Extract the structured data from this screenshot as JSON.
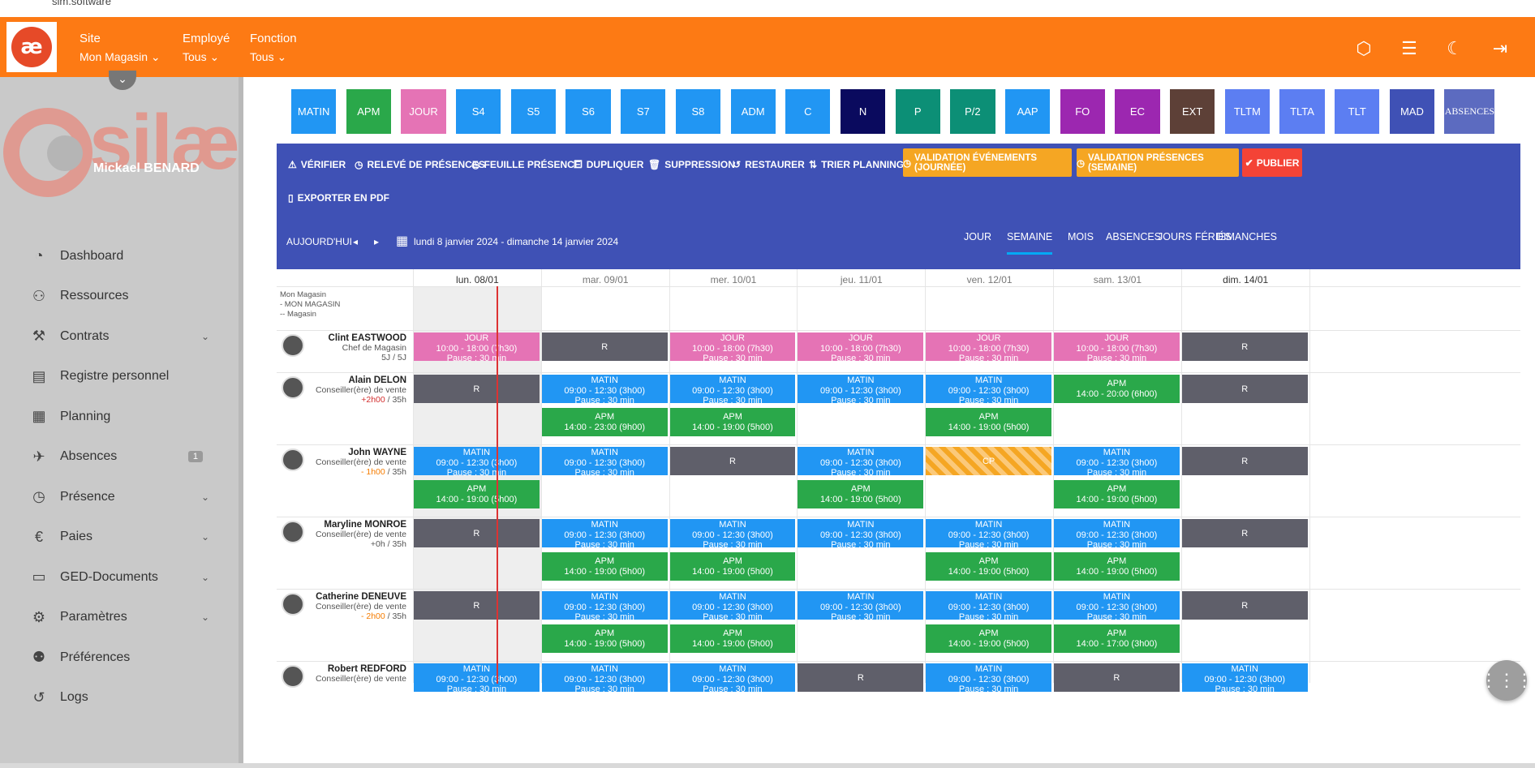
{
  "window": {
    "site_url": "sim.software"
  },
  "header": {
    "logo_text": "æ",
    "filters": [
      {
        "label": "Site",
        "value": "Mon Magasin ⌄"
      },
      {
        "label": "Employé",
        "value": "Tous ⌄"
      },
      {
        "label": "Fonction",
        "value": "Tous ⌄"
      }
    ],
    "icons": [
      "cube-icon",
      "indent-icon",
      "moon-icon",
      "logout-icon"
    ]
  },
  "sidebar": {
    "brand": "silæ",
    "user_name": "Mickael BENARD",
    "collapse_glyph": "⌄",
    "items": [
      {
        "label": "Dashboard",
        "icon": "gauge-icon",
        "glyph": "◔",
        "chevron": false
      },
      {
        "label": "Ressources",
        "icon": "users-icon",
        "glyph": "⚇",
        "chevron": false
      },
      {
        "label": "Contrats",
        "icon": "gavel-icon",
        "glyph": "⚒",
        "chevron": true
      },
      {
        "label": "Registre personnel",
        "icon": "register-icon",
        "glyph": "▤",
        "chevron": false
      },
      {
        "label": "Planning",
        "icon": "calendar-icon",
        "glyph": "▦",
        "chevron": false
      },
      {
        "label": "Absences",
        "icon": "plane-icon",
        "glyph": "✈",
        "chevron": false,
        "badge": "1"
      },
      {
        "label": "Présence",
        "icon": "clock-icon",
        "glyph": "◷",
        "chevron": true
      },
      {
        "label": "Paies",
        "icon": "euro-icon",
        "glyph": "€",
        "chevron": true
      },
      {
        "label": "GED-Documents",
        "icon": "folder-icon",
        "glyph": "▭",
        "chevron": true
      },
      {
        "label": "Paramètres",
        "icon": "gear-icon",
        "glyph": "⚙",
        "chevron": true
      },
      {
        "label": "Préférences",
        "icon": "user-cog-icon",
        "glyph": "⚉",
        "chevron": false
      },
      {
        "label": "Logs",
        "icon": "history-icon",
        "glyph": "↺",
        "chevron": false
      }
    ]
  },
  "codes": [
    {
      "label": "MATIN",
      "color": "#2196f3"
    },
    {
      "label": "APM",
      "color": "#2aa84a"
    },
    {
      "label": "JOUR",
      "color": "#e573b5"
    },
    {
      "label": "S4",
      "color": "#2196f3"
    },
    {
      "label": "S5",
      "color": "#2196f3"
    },
    {
      "label": "S6",
      "color": "#2196f3"
    },
    {
      "label": "S7",
      "color": "#2196f3"
    },
    {
      "label": "S8",
      "color": "#2196f3"
    },
    {
      "label": "ADM",
      "color": "#2196f3"
    },
    {
      "label": "C",
      "color": "#2196f3"
    },
    {
      "label": "N",
      "color": "#0a0a5e"
    },
    {
      "label": "P",
      "color": "#0c8f76"
    },
    {
      "label": "P/2",
      "color": "#0c8f76"
    },
    {
      "label": "AAP",
      "color": "#2196f3"
    },
    {
      "label": "FO",
      "color": "#9c27b0"
    },
    {
      "label": "EC",
      "color": "#9c27b0"
    },
    {
      "label": "EXT",
      "color": "#5d4037"
    },
    {
      "label": "TLTM",
      "color": "#5c7ef2"
    },
    {
      "label": "TLTA",
      "color": "#5c7ef2"
    },
    {
      "label": "TLT",
      "color": "#5c7ef2"
    },
    {
      "label": "MAD",
      "color": "#3f51b5"
    },
    {
      "label": "ABSENCES",
      "color": "#5c6bc0"
    }
  ],
  "toolbar": {
    "verify": "VÉRIFIER",
    "releve": "RELEVÉ DE PRÉSENCES",
    "feuille": "FEUILLE PRÉSENCE",
    "dupliquer": "DUPLIQUER",
    "suppression": "SUPPRESSION",
    "restaurer": "RESTAURER",
    "trier": "TRIER PLANNING",
    "valid_evt": "VALIDATION ÉVÉNEMENTS (JOURNÉE)",
    "valid_pres": "VALIDATION PRÉSENCES (SEMAINE)",
    "publier": "PUBLIER",
    "export_pdf": "EXPORTER EN PDF"
  },
  "nav": {
    "today": "AUJOURD'HUI",
    "prev": "◂",
    "next": "▸",
    "range": "lundi 8 janvier 2024 - dimanche 14 janvier 2024",
    "views": [
      "JOUR",
      "SEMAINE",
      "MOIS",
      "ABSENCES",
      "JOURS FÉRIÉS",
      "DIMANCHES"
    ],
    "active_view": "SEMAINE"
  },
  "days": [
    "lun. 08/01",
    "mar. 09/01",
    "mer. 10/01",
    "jeu. 11/01",
    "ven. 12/01",
    "sam. 13/01",
    "dim. 14/01"
  ],
  "site_label": [
    "Mon Magasin",
    "- MON MAGASIN",
    "-- Magasin"
  ],
  "employees": [
    {
      "name": "Clint EASTWOOD",
      "role": "Chef de Magasin",
      "hours": "5J / 5J",
      "hours_delta": ""
    },
    {
      "name": "Alain DELON",
      "role": "Conseiller(ère) de vente",
      "hours": " / 35h",
      "hours_delta": "+2h00"
    },
    {
      "name": "John WAYNE",
      "role": "Conseiller(ère) de vente",
      "hours": " / 35h",
      "hours_delta": "- 1h00"
    },
    {
      "name": "Maryline MONROE",
      "role": "Conseiller(ère) de vente",
      "hours": "+0h / 35h",
      "hours_delta": ""
    },
    {
      "name": "Catherine DENEUVE",
      "role": "Conseiller(ère) de vente",
      "hours": " / 35h",
      "hours_delta": "- 2h00"
    },
    {
      "name": "Robert REDFORD",
      "role": "Conseiller(ère) de vente",
      "hours": "",
      "hours_delta": ""
    }
  ],
  "shift_colors": {
    "JOUR": "#e573b5",
    "MATIN": "#2196f3",
    "APM": "#2aa84a",
    "R": "#5f5f6a",
    "CP": "#f5a623"
  },
  "shifts": [
    {
      "emp": 0,
      "day": 0,
      "slot": 0,
      "code": "JOUR",
      "l1": "JOUR",
      "l2": "10:00 - 18:00 (7h30)",
      "l3": "Pause : 30 min"
    },
    {
      "emp": 0,
      "day": 1,
      "slot": 0,
      "code": "R",
      "l1": "R"
    },
    {
      "emp": 0,
      "day": 2,
      "slot": 0,
      "code": "JOUR",
      "l1": "JOUR",
      "l2": "10:00 - 18:00 (7h30)",
      "l3": "Pause : 30 min"
    },
    {
      "emp": 0,
      "day": 3,
      "slot": 0,
      "code": "JOUR",
      "l1": "JOUR",
      "l2": "10:00 - 18:00 (7h30)",
      "l3": "Pause : 30 min"
    },
    {
      "emp": 0,
      "day": 4,
      "slot": 0,
      "code": "JOUR",
      "l1": "JOUR",
      "l2": "10:00 - 18:00 (7h30)",
      "l3": "Pause : 30 min"
    },
    {
      "emp": 0,
      "day": 5,
      "slot": 0,
      "code": "JOUR",
      "l1": "JOUR",
      "l2": "10:00 - 18:00 (7h30)",
      "l3": "Pause : 30 min"
    },
    {
      "emp": 0,
      "day": 6,
      "slot": 0,
      "code": "R",
      "l1": "R"
    },
    {
      "emp": 1,
      "day": 0,
      "slot": 0,
      "code": "R",
      "l1": "R"
    },
    {
      "emp": 1,
      "day": 1,
      "slot": 0,
      "code": "MATIN",
      "l1": "MATIN",
      "l2": "09:00 - 12:30 (3h00)",
      "l3": "Pause : 30 min"
    },
    {
      "emp": 1,
      "day": 2,
      "slot": 0,
      "code": "MATIN",
      "l1": "MATIN",
      "l2": "09:00 - 12:30 (3h00)",
      "l3": "Pause : 30 min"
    },
    {
      "emp": 1,
      "day": 3,
      "slot": 0,
      "code": "MATIN",
      "l1": "MATIN",
      "l2": "09:00 - 12:30 (3h00)",
      "l3": "Pause : 30 min"
    },
    {
      "emp": 1,
      "day": 4,
      "slot": 0,
      "code": "MATIN",
      "l1": "MATIN",
      "l2": "09:00 - 12:30 (3h00)",
      "l3": "Pause : 30 min"
    },
    {
      "emp": 1,
      "day": 5,
      "slot": 0,
      "code": "APM",
      "l1": "APM",
      "l2": "14:00 - 20:00 (6h00)"
    },
    {
      "emp": 1,
      "day": 6,
      "slot": 0,
      "code": "R",
      "l1": "R"
    },
    {
      "emp": 1,
      "day": 1,
      "slot": 1,
      "code": "APM",
      "l1": "APM",
      "l2": "14:00 - 23:00 (9h00)"
    },
    {
      "emp": 1,
      "day": 2,
      "slot": 1,
      "code": "APM",
      "l1": "APM",
      "l2": "14:00 - 19:00 (5h00)"
    },
    {
      "emp": 1,
      "day": 4,
      "slot": 1,
      "code": "APM",
      "l1": "APM",
      "l2": "14:00 - 19:00 (5h00)"
    },
    {
      "emp": 2,
      "day": 0,
      "slot": 0,
      "code": "MATIN",
      "l1": "MATIN",
      "l2": "09:00 - 12:30 (3h00)",
      "l3": "Pause : 30 min"
    },
    {
      "emp": 2,
      "day": 1,
      "slot": 0,
      "code": "MATIN",
      "l1": "MATIN",
      "l2": "09:00 - 12:30 (3h00)",
      "l3": "Pause : 30 min"
    },
    {
      "emp": 2,
      "day": 2,
      "slot": 0,
      "code": "R",
      "l1": "R"
    },
    {
      "emp": 2,
      "day": 3,
      "slot": 0,
      "code": "MATIN",
      "l1": "MATIN",
      "l2": "09:00 - 12:30 (3h00)",
      "l3": "Pause : 30 min"
    },
    {
      "emp": 2,
      "day": 4,
      "slot": 0,
      "code": "CP",
      "l1": "CP"
    },
    {
      "emp": 2,
      "day": 5,
      "slot": 0,
      "code": "MATIN",
      "l1": "MATIN",
      "l2": "09:00 - 12:30 (3h00)",
      "l3": "Pause : 30 min"
    },
    {
      "emp": 2,
      "day": 6,
      "slot": 0,
      "code": "R",
      "l1": "R"
    },
    {
      "emp": 2,
      "day": 0,
      "slot": 1,
      "code": "APM",
      "l1": "APM",
      "l2": "14:00 - 19:00 (5h00)"
    },
    {
      "emp": 2,
      "day": 3,
      "slot": 1,
      "code": "APM",
      "l1": "APM",
      "l2": "14:00 - 19:00 (5h00)"
    },
    {
      "emp": 2,
      "day": 5,
      "slot": 1,
      "code": "APM",
      "l1": "APM",
      "l2": "14:00 - 19:00 (5h00)"
    },
    {
      "emp": 3,
      "day": 0,
      "slot": 0,
      "code": "R",
      "l1": "R"
    },
    {
      "emp": 3,
      "day": 1,
      "slot": 0,
      "code": "MATIN",
      "l1": "MATIN",
      "l2": "09:00 - 12:30 (3h00)",
      "l3": "Pause : 30 min"
    },
    {
      "emp": 3,
      "day": 2,
      "slot": 0,
      "code": "MATIN",
      "l1": "MATIN",
      "l2": "09:00 - 12:30 (3h00)",
      "l3": "Pause : 30 min"
    },
    {
      "emp": 3,
      "day": 3,
      "slot": 0,
      "code": "MATIN",
      "l1": "MATIN",
      "l2": "09:00 - 12:30 (3h00)",
      "l3": "Pause : 30 min"
    },
    {
      "emp": 3,
      "day": 4,
      "slot": 0,
      "code": "MATIN",
      "l1": "MATIN",
      "l2": "09:00 - 12:30 (3h00)",
      "l3": "Pause : 30 min"
    },
    {
      "emp": 3,
      "day": 5,
      "slot": 0,
      "code": "MATIN",
      "l1": "MATIN",
      "l2": "09:00 - 12:30 (3h00)",
      "l3": "Pause : 30 min"
    },
    {
      "emp": 3,
      "day": 6,
      "slot": 0,
      "code": "R",
      "l1": "R"
    },
    {
      "emp": 3,
      "day": 1,
      "slot": 1,
      "code": "APM",
      "l1": "APM",
      "l2": "14:00 - 19:00 (5h00)"
    },
    {
      "emp": 3,
      "day": 2,
      "slot": 1,
      "code": "APM",
      "l1": "APM",
      "l2": "14:00 - 19:00 (5h00)"
    },
    {
      "emp": 3,
      "day": 4,
      "slot": 1,
      "code": "APM",
      "l1": "APM",
      "l2": "14:00 - 19:00 (5h00)"
    },
    {
      "emp": 3,
      "day": 5,
      "slot": 1,
      "code": "APM",
      "l1": "APM",
      "l2": "14:00 - 19:00 (5h00)"
    },
    {
      "emp": 4,
      "day": 0,
      "slot": 0,
      "code": "R",
      "l1": "R"
    },
    {
      "emp": 4,
      "day": 1,
      "slot": 0,
      "code": "MATIN",
      "l1": "MATIN",
      "l2": "09:00 - 12:30 (3h00)",
      "l3": "Pause : 30 min"
    },
    {
      "emp": 4,
      "day": 2,
      "slot": 0,
      "code": "MATIN",
      "l1": "MATIN",
      "l2": "09:00 - 12:30 (3h00)",
      "l3": "Pause : 30 min"
    },
    {
      "emp": 4,
      "day": 3,
      "slot": 0,
      "code": "MATIN",
      "l1": "MATIN",
      "l2": "09:00 - 12:30 (3h00)",
      "l3": "Pause : 30 min"
    },
    {
      "emp": 4,
      "day": 4,
      "slot": 0,
      "code": "MATIN",
      "l1": "MATIN",
      "l2": "09:00 - 12:30 (3h00)",
      "l3": "Pause : 30 min"
    },
    {
      "emp": 4,
      "day": 5,
      "slot": 0,
      "code": "MATIN",
      "l1": "MATIN",
      "l2": "09:00 - 12:30 (3h00)",
      "l3": "Pause : 30 min"
    },
    {
      "emp": 4,
      "day": 6,
      "slot": 0,
      "code": "R",
      "l1": "R"
    },
    {
      "emp": 4,
      "day": 1,
      "slot": 1,
      "code": "APM",
      "l1": "APM",
      "l2": "14:00 - 19:00 (5h00)"
    },
    {
      "emp": 4,
      "day": 2,
      "slot": 1,
      "code": "APM",
      "l1": "APM",
      "l2": "14:00 - 19:00 (5h00)"
    },
    {
      "emp": 4,
      "day": 4,
      "slot": 1,
      "code": "APM",
      "l1": "APM",
      "l2": "14:00 - 19:00 (5h00)"
    },
    {
      "emp": 4,
      "day": 5,
      "slot": 1,
      "code": "APM",
      "l1": "APM",
      "l2": "14:00 - 17:00 (3h00)"
    },
    {
      "emp": 5,
      "day": 0,
      "slot": 0,
      "code": "MATIN",
      "l1": "MATIN",
      "l2": "09:00 - 12:30 (3h00)",
      "l3": "Pause : 30 min"
    },
    {
      "emp": 5,
      "day": 1,
      "slot": 0,
      "code": "MATIN",
      "l1": "MATIN",
      "l2": "09:00 - 12:30 (3h00)",
      "l3": "Pause : 30 min"
    },
    {
      "emp": 5,
      "day": 2,
      "slot": 0,
      "code": "MATIN",
      "l1": "MATIN",
      "l2": "09:00 - 12:30 (3h00)",
      "l3": "Pause : 30 min"
    },
    {
      "emp": 5,
      "day": 3,
      "slot": 0,
      "code": "R",
      "l1": "R"
    },
    {
      "emp": 5,
      "day": 4,
      "slot": 0,
      "code": "MATIN",
      "l1": "MATIN",
      "l2": "09:00 - 12:30 (3h00)",
      "l3": "Pause : 30 min"
    },
    {
      "emp": 5,
      "day": 5,
      "slot": 0,
      "code": "R",
      "l1": "R"
    },
    {
      "emp": 5,
      "day": 6,
      "slot": 0,
      "code": "MATIN",
      "l1": "MATIN",
      "l2": "09:00 - 12:30 (3h00)",
      "l3": "Pause : 30 min"
    }
  ]
}
